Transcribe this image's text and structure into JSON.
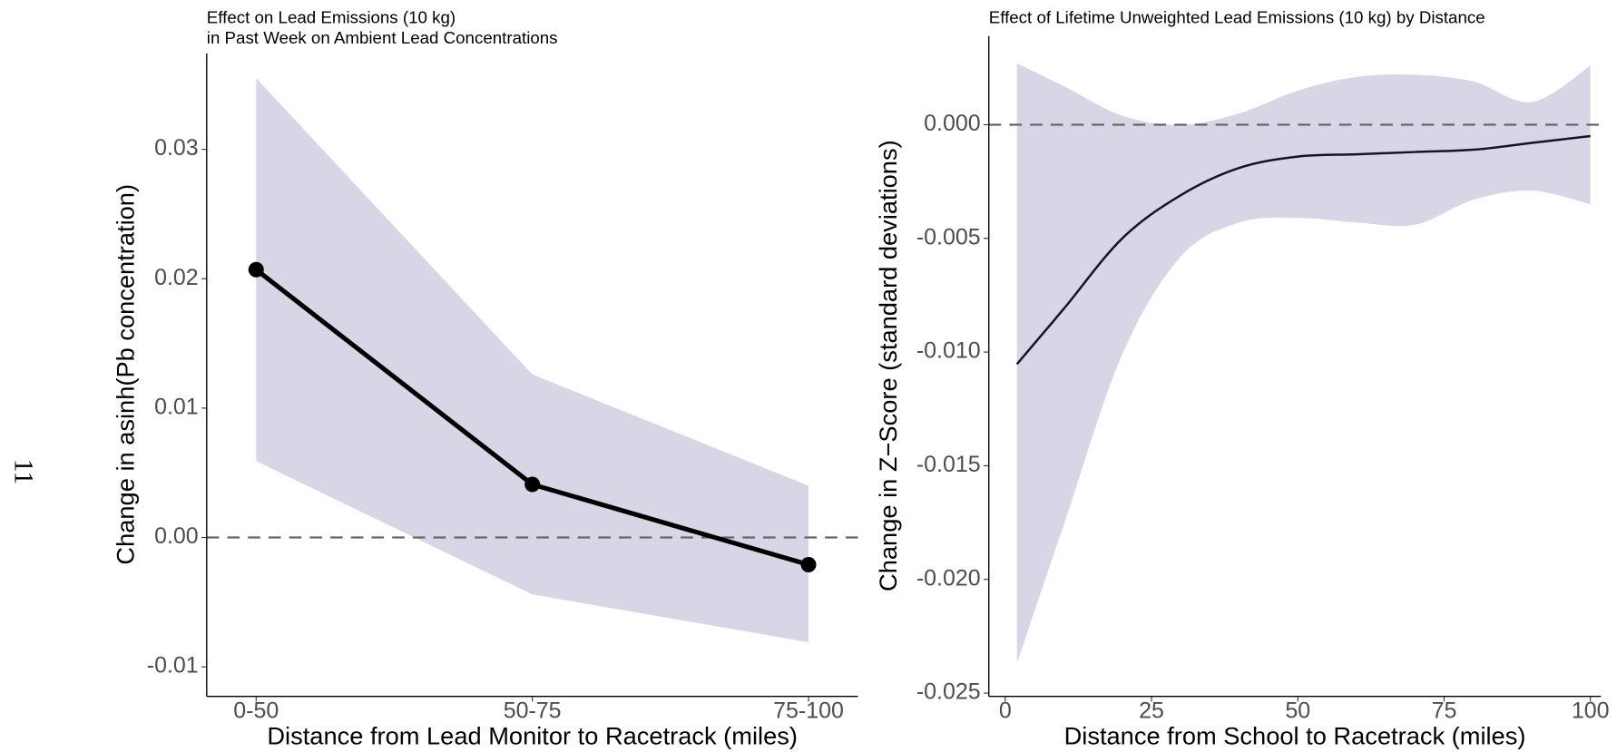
{
  "page_number": "11",
  "chart_data": [
    {
      "type": "line",
      "title": "Effect on Lead Emissions (10 kg)",
      "subtitle": "in Past Week on Ambient Lead Concentrations",
      "x_label": "Distance from Lead Monitor to Racetrack (miles)",
      "y_label": "Change in asinh(Pb concentration)",
      "categories": [
        "0-50",
        "50-75",
        "75-100"
      ],
      "values": [
        0.0207,
        0.0041,
        -0.0021
      ],
      "ci_lower": [
        0.0059,
        -0.0044,
        -0.0081
      ],
      "ci_upper": [
        0.0355,
        0.0126,
        0.004
      ],
      "color": "#000000",
      "ribbon_color": "#d8d6e6",
      "markers": true,
      "reference_line": 0,
      "ylim": [
        -0.0122,
        0.0374
      ],
      "yticks": [
        -0.01,
        {
          "value": 0,
          "label": "0.00"
        },
        0.01,
        0.02,
        0.03
      ]
    },
    {
      "type": "line",
      "title": "Effect of Lifetime Unweighted Lead Emissions (10 kg) by Distance",
      "x_label": "Distance from School to Racetrack (miles)",
      "y_label": "Change in Z−Score (standard deviations)",
      "x": [
        2,
        10,
        20,
        30,
        40,
        50,
        60,
        70,
        80,
        90,
        100
      ],
      "values": [
        -0.01053,
        -0.0081,
        -0.005,
        -0.0031,
        -0.0019,
        -0.0014,
        -0.0013,
        -0.0012,
        -0.0011,
        -0.0008,
        -0.0005
      ],
      "ci_lower": [
        -0.0237,
        -0.0176,
        -0.0101,
        -0.0058,
        -0.0043,
        -0.0041,
        -0.0043,
        -0.0044,
        -0.0033,
        -0.0029,
        -0.0035
      ],
      "ci_upper": [
        0.0027,
        0.0017,
        0.0004,
        0.0,
        0.0005,
        0.0015,
        0.0021,
        0.0022,
        0.0019,
        0.001,
        0.0026
      ],
      "color": "#14132a",
      "ribbon_color": "#d8d6e6",
      "markers": false,
      "reference_line": 0,
      "xlim": [
        -2.8,
        101.8
      ],
      "xticks": [
        0,
        25,
        50,
        75,
        100
      ],
      "ylim": [
        -0.0251,
        0.0039
      ],
      "yticks": [
        -0.025,
        {
          "value": -0.02,
          "label": "-0.020"
        },
        -0.015,
        {
          "value": -0.01,
          "label": "-0.010"
        },
        -0.005,
        {
          "value": 0,
          "label": "0.000"
        }
      ]
    }
  ]
}
